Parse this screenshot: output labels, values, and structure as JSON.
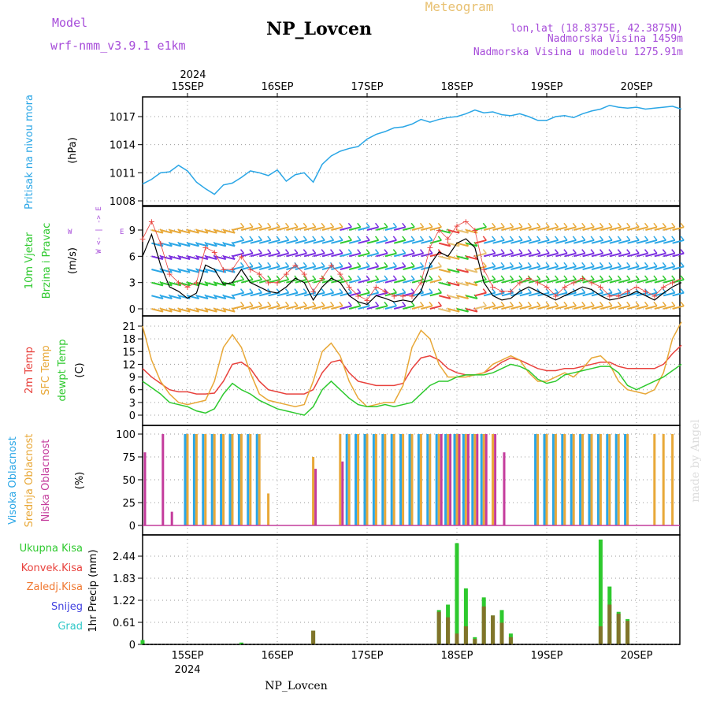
{
  "header": {
    "model_label": "Model",
    "model_name": "wrf-nmm_v3.9.1 e1km",
    "station": "NP_Lovcen",
    "meteogram": "Meteogram",
    "lonlat": "lon,lat (18.8375E, 42.3875N)",
    "alt": "Nadmorska Visina 1459m",
    "alt_model": "Nadmorska Visina u modelu 1275.91m",
    "footer_station": "NP_Lovcen",
    "watermark": "made by Angel"
  },
  "axes": {
    "top_year": "2024",
    "bottom_year": "2024",
    "dates": [
      "15SEP",
      "16SEP",
      "17SEP",
      "18SEP",
      "19SEP",
      "20SEP"
    ]
  },
  "colors": {
    "pressure": "#2aa6e6",
    "temp2m": "#e8413c",
    "sfc": "#e8a838",
    "dewpt": "#2ec92e",
    "high_cloud": "#2aa6e6",
    "mid_cloud": "#e8a838",
    "low_cloud": "#c43c9c",
    "total_precip": "#2ec92e",
    "conv_precip": "#e8413c",
    "frozen_precip": "#f07830",
    "snow": "#4040e0",
    "graupel": "#30c8c8",
    "title_purple": "#a64bd9",
    "title_gold": "#e8c070"
  },
  "chart_data": [
    {
      "type": "line",
      "panel": "pressure",
      "ylabel_1": "Pritisak na nivou mora",
      "ylabel_2": "(hPa)",
      "yticks": [
        "1008",
        "1011",
        "1014",
        "1017"
      ],
      "ylim": [
        1008,
        1018
      ],
      "x_unit": "days from 15SEP 00UTC",
      "x": [
        -0.5,
        -0.4,
        -0.3,
        -0.2,
        -0.1,
        0.0,
        0.1,
        0.2,
        0.3,
        0.4,
        0.5,
        0.6,
        0.7,
        0.8,
        0.9,
        1.0,
        1.1,
        1.2,
        1.3,
        1.4,
        1.5,
        1.6,
        1.7,
        1.8,
        1.9,
        2.0,
        2.1,
        2.2,
        2.3,
        2.4,
        2.5,
        2.6,
        2.7,
        2.8,
        2.9,
        3.0,
        3.1,
        3.2,
        3.3,
        3.4,
        3.5,
        3.6,
        3.7,
        3.8,
        3.9,
        4.0,
        4.1,
        4.2,
        4.3,
        4.4,
        4.5,
        4.6,
        4.7,
        4.8,
        4.9,
        5.0,
        5.1,
        5.2,
        5.3,
        5.4,
        5.5
      ],
      "values": [
        1009.8,
        1010.3,
        1011.0,
        1011.1,
        1011.8,
        1011.2,
        1010.0,
        1009.3,
        1008.7,
        1009.7,
        1009.9,
        1010.5,
        1011.2,
        1011.0,
        1010.7,
        1011.3,
        1010.1,
        1010.8,
        1011.0,
        1010.0,
        1011.9,
        1012.8,
        1013.3,
        1013.6,
        1013.8,
        1014.6,
        1015.1,
        1015.4,
        1015.8,
        1015.9,
        1016.2,
        1016.7,
        1016.4,
        1016.7,
        1016.9,
        1017.0,
        1017.3,
        1017.7,
        1017.4,
        1017.5,
        1017.2,
        1017.1,
        1017.3,
        1017.0,
        1016.6,
        1016.6,
        1017.0,
        1017.1,
        1016.9,
        1017.3,
        1017.6,
        1017.8,
        1018.2,
        1018.0,
        1017.9,
        1018.0,
        1017.8,
        1017.9,
        1018.0,
        1018.1,
        1017.8
      ]
    },
    {
      "type": "line",
      "panel": "wind",
      "ylabel_1": "10m Vjetar",
      "ylabel_2": "Brzina i Pravac",
      "ylabel_3": "(m/s)",
      "compass": "W <- | -> E",
      "compass_n": "N",
      "compass_s": "S",
      "yticks": [
        "0",
        "3",
        "6",
        "9"
      ],
      "ylim": [
        -0.8,
        10.4
      ],
      "x": [
        -0.5,
        -0.4,
        -0.3,
        -0.2,
        -0.1,
        0.0,
        0.1,
        0.2,
        0.3,
        0.4,
        0.5,
        0.6,
        0.7,
        0.8,
        0.9,
        1.0,
        1.1,
        1.2,
        1.3,
        1.4,
        1.5,
        1.6,
        1.7,
        1.8,
        1.9,
        2.0,
        2.1,
        2.2,
        2.3,
        2.4,
        2.5,
        2.6,
        2.7,
        2.8,
        2.9,
        3.0,
        3.1,
        3.2,
        3.3,
        3.4,
        3.5,
        3.6,
        3.7,
        3.8,
        3.9,
        4.0,
        4.1,
        4.2,
        4.3,
        4.4,
        4.5,
        4.6,
        4.7,
        4.8,
        4.9,
        5.0,
        5.1,
        5.2,
        5.3,
        5.4,
        5.5
      ],
      "values": [
        6.0,
        8.5,
        5.0,
        2.5,
        2.0,
        1.2,
        1.8,
        5.0,
        4.5,
        2.8,
        3.0,
        4.5,
        3.0,
        2.5,
        2.0,
        1.8,
        2.5,
        3.5,
        3.0,
        1.0,
        2.5,
        3.5,
        3.0,
        1.5,
        0.8,
        0.5,
        1.5,
        1.2,
        0.8,
        1.0,
        0.8,
        2.0,
        5.0,
        6.5,
        6.0,
        7.5,
        8.0,
        7.0,
        3.0,
        1.5,
        1.0,
        1.2,
        2.0,
        2.5,
        2.0,
        1.5,
        1.0,
        1.5,
        2.0,
        2.5,
        2.2,
        1.5,
        1.0,
        1.2,
        1.5,
        2.0,
        1.5,
        1.0,
        1.8,
        2.5,
        3.0
      ],
      "gust_values": [
        8.0,
        10.0,
        7.5,
        4.0,
        3.0,
        2.5,
        3.0,
        7.0,
        6.5,
        4.5,
        4.5,
        6.0,
        4.5,
        4.0,
        3.0,
        3.0,
        4.0,
        5.0,
        4.0,
        2.0,
        3.5,
        5.0,
        4.0,
        2.5,
        1.5,
        1.0,
        2.5,
        2.0,
        1.5,
        1.5,
        1.5,
        3.0,
        7.0,
        9.0,
        8.0,
        9.5,
        10.0,
        9.0,
        4.5,
        2.5,
        2.0,
        2.0,
        3.0,
        3.5,
        3.0,
        2.5,
        1.5,
        2.5,
        3.0,
        3.5,
        3.0,
        2.5,
        1.5,
        1.5,
        2.0,
        2.5,
        2.0,
        1.5,
        2.5,
        3.0,
        3.5
      ]
    },
    {
      "type": "line",
      "panel": "temperature",
      "ylabel_1": "2m Temp",
      "ylabel_2": "SFC Temp",
      "ylabel_3": "dewpt Temp",
      "ylabel_4": "(C)",
      "yticks": [
        "0",
        "3",
        "6",
        "9",
        "12",
        "15",
        "18",
        "21"
      ],
      "ylim": [
        -1.5,
        23
      ],
      "x": [
        -0.5,
        -0.4,
        -0.3,
        -0.2,
        -0.1,
        0.0,
        0.1,
        0.2,
        0.3,
        0.4,
        0.5,
        0.6,
        0.7,
        0.8,
        0.9,
        1.0,
        1.1,
        1.2,
        1.3,
        1.4,
        1.5,
        1.6,
        1.7,
        1.8,
        1.9,
        2.0,
        2.1,
        2.2,
        2.3,
        2.4,
        2.5,
        2.6,
        2.7,
        2.8,
        2.9,
        3.0,
        3.1,
        3.2,
        3.3,
        3.4,
        3.5,
        3.6,
        3.7,
        3.8,
        3.9,
        4.0,
        4.1,
        4.2,
        4.3,
        4.4,
        4.5,
        4.6,
        4.7,
        4.8,
        4.9,
        5.0,
        5.1,
        5.2,
        5.3,
        5.4,
        5.5
      ],
      "series": [
        {
          "name": "2m Temp",
          "color_key": "temp2m",
          "values": [
            11.0,
            9.0,
            7.5,
            6.0,
            5.5,
            5.5,
            5.0,
            5.0,
            5.2,
            8.0,
            12.0,
            12.5,
            11.0,
            8.0,
            6.0,
            5.5,
            5.0,
            5.0,
            5.0,
            6.0,
            10.0,
            12.5,
            13.0,
            10.0,
            8.0,
            7.5,
            7.0,
            7.0,
            7.0,
            7.5,
            11.0,
            13.5,
            14.0,
            13.0,
            11.0,
            10.0,
            9.5,
            9.5,
            10.0,
            11.0,
            12.5,
            13.5,
            13.0,
            12.0,
            11.0,
            10.5,
            10.5,
            11.0,
            11.0,
            11.5,
            12.0,
            12.5,
            12.5,
            11.5,
            11.0,
            11.0,
            11.0,
            11.0,
            12.0,
            14.5,
            16.5
          ]
        },
        {
          "name": "SFC Temp",
          "color_key": "sfc",
          "values": [
            21.0,
            13.0,
            8.0,
            5.0,
            3.0,
            2.5,
            3.0,
            3.5,
            8.0,
            16.0,
            19.0,
            16.0,
            10.0,
            5.0,
            3.5,
            3.0,
            2.5,
            2.0,
            2.5,
            8.0,
            15.0,
            17.0,
            14.0,
            8.0,
            4.0,
            2.0,
            2.5,
            3.0,
            3.0,
            7.0,
            16.0,
            20.0,
            18.0,
            12.0,
            9.0,
            9.0,
            9.0,
            9.5,
            10.0,
            12.0,
            13.0,
            14.0,
            13.0,
            10.0,
            8.0,
            8.0,
            9.0,
            10.0,
            9.0,
            11.0,
            13.5,
            14.0,
            12.0,
            8.0,
            6.0,
            5.5,
            5.0,
            6.0,
            10.0,
            18.0,
            22.0
          ]
        },
        {
          "name": "dewpt Temp",
          "color_key": "dewpt",
          "values": [
            8.0,
            6.5,
            5.0,
            3.0,
            2.5,
            2.0,
            1.0,
            0.5,
            1.5,
            5.0,
            7.5,
            6.0,
            5.0,
            3.5,
            2.5,
            1.5,
            1.0,
            0.5,
            0.0,
            2.0,
            6.0,
            8.0,
            6.0,
            4.0,
            2.5,
            2.0,
            2.0,
            2.5,
            2.0,
            2.5,
            3.0,
            5.0,
            7.0,
            8.0,
            8.0,
            9.0,
            9.5,
            9.5,
            9.5,
            10.0,
            11.0,
            12.0,
            11.5,
            10.5,
            8.5,
            7.5,
            8.0,
            9.5,
            10.0,
            10.5,
            11.0,
            11.5,
            11.5,
            10.0,
            7.0,
            6.0,
            7.0,
            8.0,
            9.0,
            10.5,
            12.0
          ]
        }
      ]
    },
    {
      "type": "bar",
      "panel": "clouds",
      "ylabel_1": "Visoka Oblacnost",
      "ylabel_2": "Srednja Oblacnost",
      "ylabel_3": "Niska Oblacnost",
      "ylabel_4": "(%)",
      "yticks": [
        "0",
        "25",
        "50",
        "75",
        "100"
      ],
      "ylim": [
        0,
        100
      ],
      "x": [
        -0.5,
        -0.4,
        -0.3,
        -0.2,
        -0.1,
        0.0,
        0.1,
        0.2,
        0.3,
        0.4,
        0.5,
        0.6,
        0.7,
        0.8,
        0.9,
        1.0,
        1.1,
        1.2,
        1.3,
        1.4,
        1.5,
        1.6,
        1.7,
        1.8,
        1.9,
        2.0,
        2.1,
        2.2,
        2.3,
        2.4,
        2.5,
        2.6,
        2.7,
        2.8,
        2.9,
        3.0,
        3.1,
        3.2,
        3.3,
        3.4,
        3.5,
        3.6,
        3.7,
        3.8,
        3.9,
        4.0,
        4.1,
        4.2,
        4.3,
        4.4,
        4.5,
        4.6,
        4.7,
        4.8,
        4.9,
        5.0,
        5.1,
        5.2,
        5.3,
        5.4,
        5.5
      ],
      "series": [
        {
          "name": "Visoka Oblacnost",
          "color_key": "high_cloud",
          "values": [
            0,
            0,
            0,
            0,
            0,
            100,
            100,
            100,
            100,
            100,
            100,
            100,
            100,
            100,
            0,
            0,
            0,
            0,
            0,
            0,
            0,
            0,
            0,
            100,
            100,
            100,
            100,
            100,
            100,
            100,
            100,
            100,
            100,
            100,
            100,
            100,
            100,
            100,
            100,
            0,
            0,
            0,
            0,
            0,
            100,
            100,
            100,
            100,
            100,
            100,
            100,
            100,
            100,
            100,
            100,
            0,
            0,
            0,
            0,
            0,
            0
          ]
        },
        {
          "name": "Srednja Oblacnost",
          "color_key": "mid_cloud",
          "values": [
            0,
            0,
            0,
            0,
            0,
            100,
            100,
            100,
            100,
            100,
            100,
            100,
            100,
            100,
            35,
            0,
            0,
            0,
            0,
            75,
            0,
            0,
            100,
            100,
            100,
            100,
            100,
            100,
            100,
            100,
            100,
            100,
            100,
            100,
            100,
            100,
            100,
            100,
            100,
            100,
            0,
            0,
            0,
            0,
            100,
            100,
            100,
            100,
            100,
            100,
            100,
            100,
            100,
            100,
            100,
            0,
            0,
            100,
            100,
            100,
            100
          ]
        },
        {
          "name": "Niska Oblacnost",
          "color_key": "low_cloud",
          "values": [
            80,
            0,
            100,
            15,
            0,
            0,
            0,
            0,
            0,
            0,
            0,
            0,
            0,
            0,
            0,
            0,
            0,
            0,
            0,
            62,
            0,
            0,
            70,
            0,
            0,
            0,
            0,
            0,
            0,
            0,
            0,
            0,
            0,
            100,
            100,
            100,
            100,
            100,
            100,
            100,
            80,
            0,
            0,
            0,
            0,
            0,
            0,
            0,
            0,
            0,
            0,
            0,
            0,
            0,
            0,
            0,
            0,
            0,
            0,
            0,
            0
          ]
        }
      ]
    },
    {
      "type": "bar",
      "panel": "precip",
      "legend": [
        "Ukupna Kisa",
        "Konvek.Kisa",
        "Zaledj.Kisa",
        "Snijeg",
        "Grad"
      ],
      "ylabel": "1hr Precip (mm)",
      "yticks": [
        "0",
        "0.61",
        "1.22",
        "1.83",
        "2.44"
      ],
      "ylim": [
        0,
        3.05
      ],
      "x": [
        -0.5,
        -0.4,
        -0.3,
        -0.2,
        -0.1,
        0.0,
        0.1,
        0.2,
        0.3,
        0.4,
        0.5,
        0.6,
        0.7,
        0.8,
        0.9,
        1.0,
        1.1,
        1.2,
        1.3,
        1.4,
        1.5,
        1.6,
        1.7,
        1.8,
        1.9,
        2.0,
        2.1,
        2.2,
        2.3,
        2.4,
        2.5,
        2.6,
        2.7,
        2.8,
        2.9,
        3.0,
        3.1,
        3.2,
        3.3,
        3.4,
        3.5,
        3.6,
        3.7,
        3.8,
        3.9,
        4.0,
        4.1,
        4.2,
        4.3,
        4.4,
        4.5,
        4.6,
        4.7,
        4.8,
        4.9,
        5.0,
        5.1,
        5.2,
        5.3,
        5.4,
        5.5
      ],
      "series": [
        {
          "name": "Ukupna Kisa",
          "color_key": "total_precip",
          "values": [
            0.12,
            0,
            0,
            0,
            0,
            0,
            0,
            0,
            0,
            0,
            0,
            0.05,
            0,
            0,
            0,
            0,
            0,
            0,
            0,
            0.38,
            0,
            0,
            0,
            0,
            0,
            0,
            0,
            0,
            0,
            0,
            0,
            0,
            0,
            0.95,
            1.1,
            2.8,
            1.55,
            0.2,
            1.3,
            0.8,
            0.95,
            0.3,
            0,
            0,
            0,
            0,
            0,
            0,
            0,
            0,
            0,
            2.9,
            1.6,
            0.9,
            0.7,
            0,
            0,
            0,
            0,
            0,
            0.05
          ]
        },
        {
          "name": "Konvek.Kisa",
          "color_key": "conv_precip",
          "values": [
            0,
            0,
            0,
            0,
            0,
            0,
            0,
            0,
            0,
            0,
            0,
            0,
            0,
            0,
            0,
            0,
            0,
            0,
            0,
            0.38,
            0,
            0,
            0,
            0,
            0,
            0,
            0,
            0,
            0,
            0,
            0,
            0,
            0,
            0.9,
            0.75,
            0.3,
            0.5,
            0.15,
            1.05,
            0.8,
            0.6,
            0.2,
            0,
            0,
            0,
            0,
            0,
            0,
            0,
            0,
            0,
            0.5,
            1.1,
            0.85,
            0.65,
            0,
            0,
            0,
            0,
            0,
            0.05
          ]
        }
      ]
    }
  ]
}
